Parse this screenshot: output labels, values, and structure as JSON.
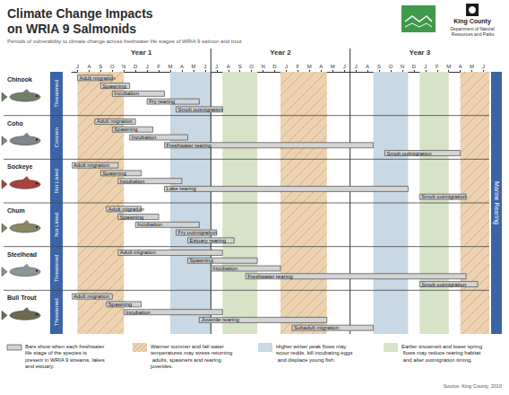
{
  "chart_data": {
    "type": "gantt",
    "title": "Climate Change Impacts on WRIA 9 Salmonids",
    "subtitle": "Periods of vulnerability to climate change across freshwater life stages of WRIA 9 salmon and trout",
    "logo_name": "King County",
    "logo_department": "Department of Natural Resources and Parks",
    "right_label": "Marine Rearing",
    "source": "Source: King County, 2010",
    "xlim": [
      0,
      36
    ],
    "xticks": [
      {
        "value": 0.5,
        "label": "J"
      },
      {
        "value": 1.5,
        "label": "A"
      },
      {
        "value": 2.5,
        "label": "S"
      },
      {
        "value": 3.5,
        "label": "O"
      },
      {
        "value": 4.5,
        "label": "N"
      },
      {
        "value": 5.5,
        "label": "D"
      },
      {
        "value": 6.5,
        "label": "J"
      },
      {
        "value": 7.5,
        "label": "F"
      },
      {
        "value": 8.5,
        "label": "M"
      },
      {
        "value": 9.5,
        "label": "A"
      },
      {
        "value": 10.5,
        "label": "M"
      },
      {
        "value": 11.5,
        "label": "J"
      },
      {
        "value": 12.5,
        "label": "J"
      },
      {
        "value": 13.5,
        "label": "A"
      },
      {
        "value": 14.5,
        "label": "S"
      },
      {
        "value": 15.5,
        "label": "O"
      },
      {
        "value": 16.5,
        "label": "N"
      },
      {
        "value": 17.5,
        "label": "D"
      },
      {
        "value": 18.5,
        "label": "J"
      },
      {
        "value": 19.5,
        "label": "F"
      },
      {
        "value": 20.5,
        "label": "M"
      },
      {
        "value": 21.5,
        "label": "A"
      },
      {
        "value": 22.5,
        "label": "M"
      },
      {
        "value": 23.5,
        "label": "J"
      },
      {
        "value": 24.5,
        "label": "J"
      },
      {
        "value": 25.5,
        "label": "A"
      },
      {
        "value": 26.5,
        "label": "S"
      },
      {
        "value": 27.5,
        "label": "O"
      },
      {
        "value": 28.5,
        "label": "N"
      },
      {
        "value": 29.5,
        "label": "D"
      },
      {
        "value": 30.5,
        "label": "J"
      },
      {
        "value": 31.5,
        "label": "F"
      },
      {
        "value": 32.5,
        "label": "M"
      },
      {
        "value": 33.5,
        "label": "A"
      },
      {
        "value": 34.5,
        "label": "M"
      },
      {
        "value": 35.5,
        "label": "J"
      }
    ],
    "periods": [
      {
        "label": "Year 1",
        "start": 0,
        "end": 12
      },
      {
        "label": "Year 2",
        "start": 12,
        "end": 24
      },
      {
        "label": "Year 3",
        "start": 24,
        "end": 36
      }
    ],
    "bar_key": {
      "text": "Bars show when each freshwater life stage of the species is present in WRIA 9 streams, lakes and estuary.",
      "color": "#d3d3d3"
    },
    "key_items": [
      {
        "text": "Warmer summer and fall water temperatures may stress returning adults, spawners and rearing juveniles.",
        "color": "#ecd2b0",
        "line_style": "hatched",
        "periods": [
          [
            0.5,
            4.5
          ],
          [
            18,
            22
          ],
          [
            33.5,
            36
          ]
        ]
      },
      {
        "text": "Higher winter peak flows may scour redds, kill incubating eggs and displace young fish.",
        "color": "#c8d8e4",
        "line_style": "solid",
        "periods": [
          [
            8.5,
            12
          ],
          [
            26,
            29
          ]
        ]
      },
      {
        "text": "Earlier snowmelt and lower spring flows may reduce rearing habitat and alter outmigration timing.",
        "color": "#d6e3c6",
        "line_style": "solid",
        "periods": [
          [
            13,
            16
          ],
          [
            30,
            32.5
          ]
        ]
      }
    ],
    "series": [
      {
        "name": "Chinook",
        "status": "Threatened",
        "color": "#6f7f6a",
        "stages": [
          {
            "label": "Adult migration",
            "start": 0.5,
            "end": 3.5
          },
          {
            "label": "Spawning",
            "start": 2.5,
            "end": 5
          },
          {
            "label": "Incubation",
            "start": 3.5,
            "end": 8
          },
          {
            "label": "Fry rearing",
            "start": 6.5,
            "end": 11
          },
          {
            "label": "Smolt outmigration",
            "start": 9,
            "end": 13
          }
        ]
      },
      {
        "name": "Coho",
        "status": "Concern",
        "color": "#7f868c",
        "stages": [
          {
            "label": "Adult migration",
            "start": 2,
            "end": 5.5
          },
          {
            "label": "Spawning",
            "start": 3.5,
            "end": 7
          },
          {
            "label": "Incubation",
            "start": 5,
            "end": 10
          },
          {
            "label": "Freshwater rearing",
            "start": 8,
            "end": 26
          },
          {
            "label": "Smolt outmigration",
            "start": 27,
            "end": 33.5
          }
        ]
      },
      {
        "name": "Sockeye",
        "status": "Not Listed",
        "color": "#a8423a",
        "stages": [
          {
            "label": "Adult migration",
            "start": 0,
            "end": 4
          },
          {
            "label": "Spawning",
            "start": 2.5,
            "end": 6
          },
          {
            "label": "Incubation",
            "start": 4,
            "end": 9.5
          },
          {
            "label": "Lake rearing",
            "start": 8,
            "end": 29
          },
          {
            "label": "Smolt outmigration",
            "start": 30,
            "end": 34
          }
        ]
      },
      {
        "name": "Chum",
        "status": "Not Listed",
        "color": "#8a8666",
        "stages": [
          {
            "label": "Adult migration",
            "start": 3,
            "end": 6
          },
          {
            "label": "Spawning",
            "start": 4,
            "end": 7.5
          },
          {
            "label": "Incubation",
            "start": 5.5,
            "end": 11
          },
          {
            "label": "Fry outmigration",
            "start": 9,
            "end": 12.5
          },
          {
            "label": "Estuary rearing",
            "start": 10,
            "end": 14
          }
        ]
      },
      {
        "name": "Steelhead",
        "status": "Threatened",
        "color": "#8e9596",
        "stages": [
          {
            "label": "Adult migration",
            "start": 4,
            "end": 13
          },
          {
            "label": "Spawning",
            "start": 10,
            "end": 16
          },
          {
            "label": "Incubation",
            "start": 12,
            "end": 18
          },
          {
            "label": "Freshwater rearing",
            "start": 15,
            "end": 34
          },
          {
            "label": "Smolt outmigration",
            "start": 30,
            "end": 35
          }
        ]
      },
      {
        "name": "Bull Trout",
        "status": "Threatened",
        "color": "#6e6a50",
        "stages": [
          {
            "label": "Adult migration",
            "start": 0,
            "end": 3.5
          },
          {
            "label": "Spawning",
            "start": 3,
            "end": 6
          },
          {
            "label": "Incubation",
            "start": 4.5,
            "end": 13
          },
          {
            "label": "Juvenile rearing",
            "start": 11,
            "end": 22
          },
          {
            "label": "Subadult migration",
            "start": 19,
            "end": 26
          }
        ]
      }
    ]
  }
}
